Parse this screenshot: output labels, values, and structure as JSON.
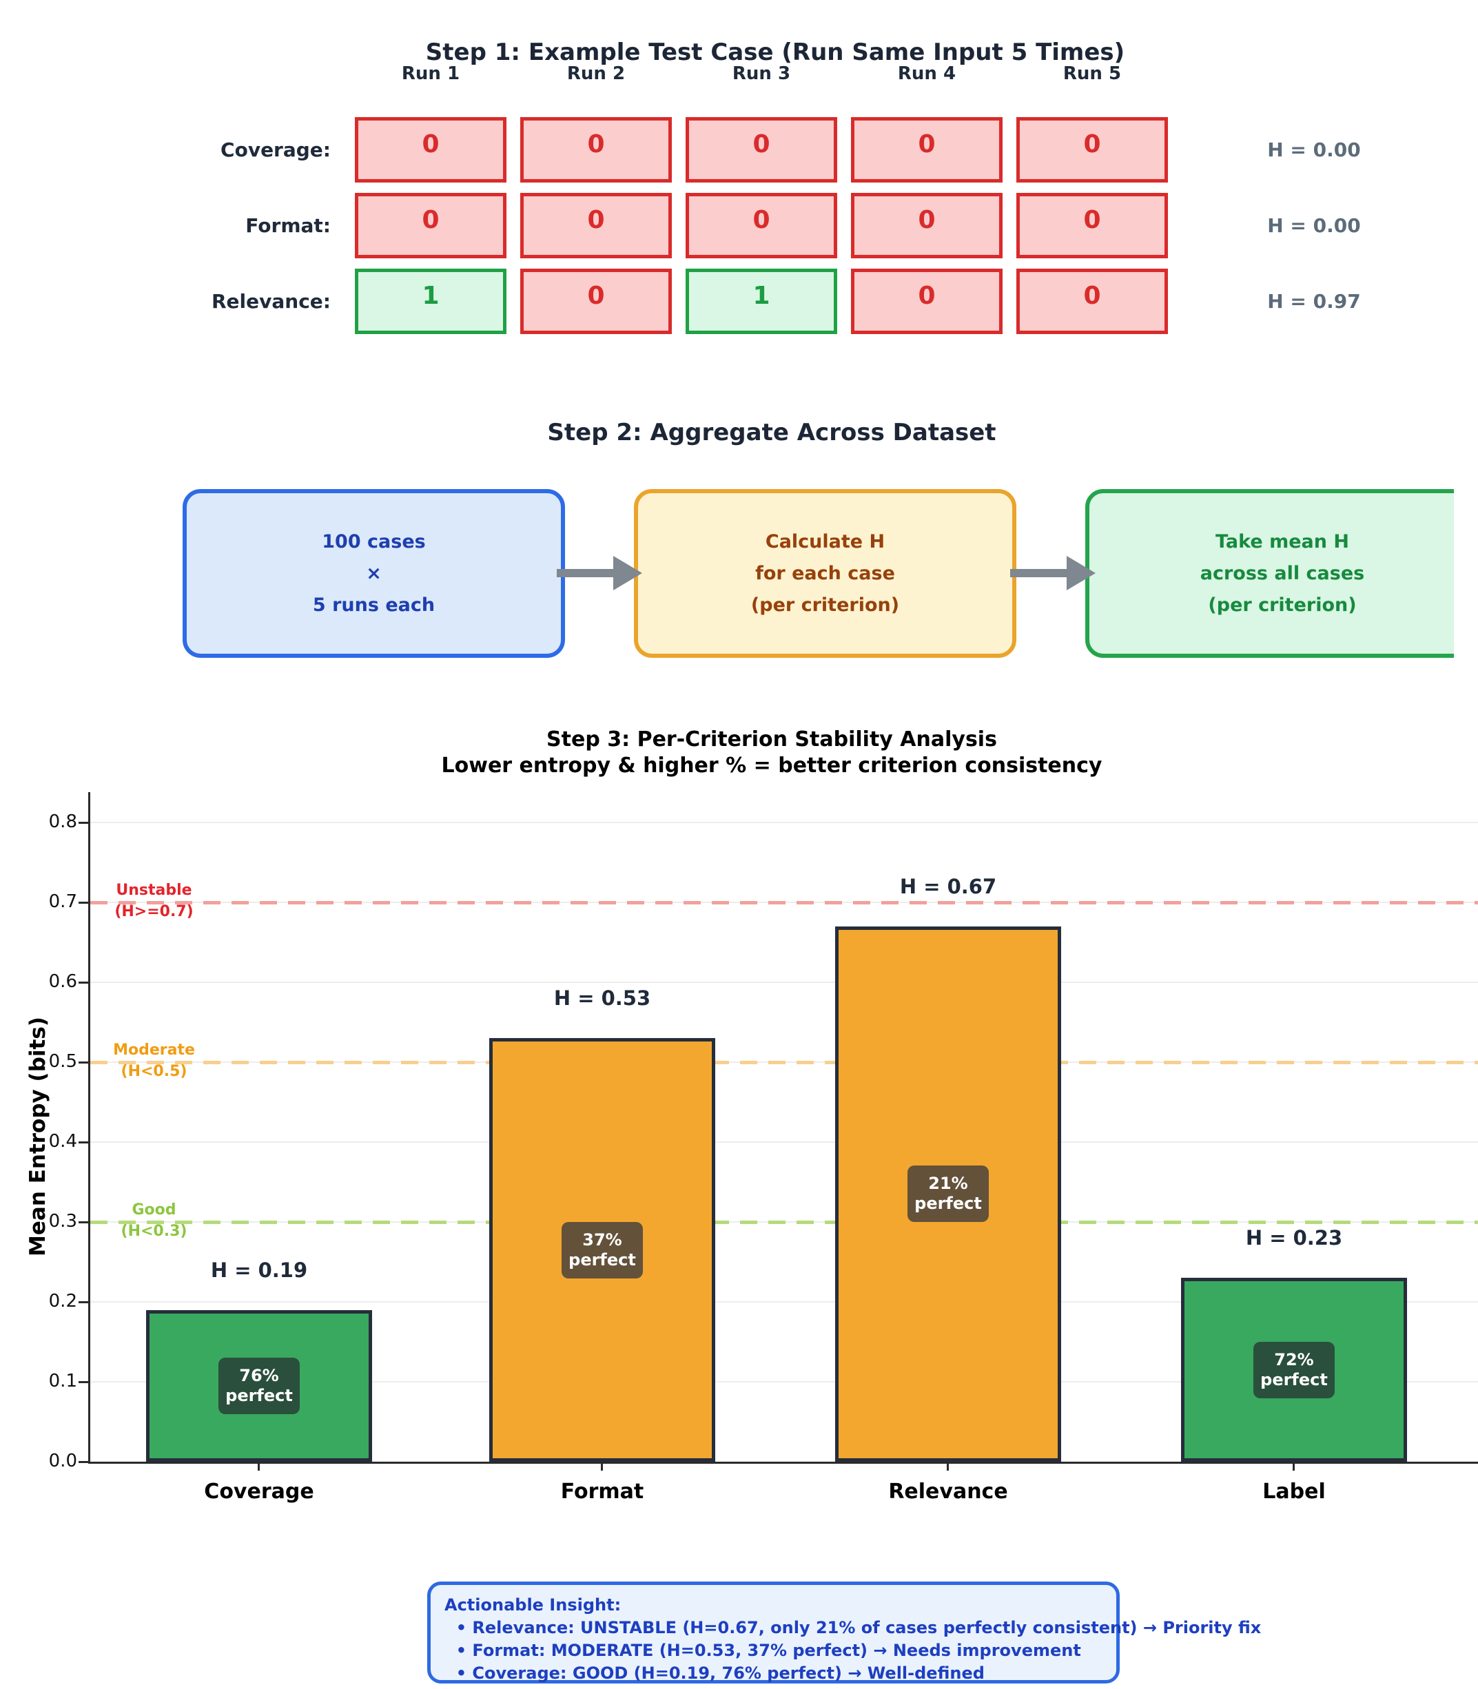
{
  "step1": {
    "title": "Step 1: Example Test Case (Run Same Input 5 Times)",
    "run_headers": [
      "Run 1",
      "Run 2",
      "Run 3",
      "Run 4",
      "Run 5"
    ],
    "rows": [
      {
        "label": "Coverage:",
        "values": [
          "0",
          "0",
          "0",
          "0",
          "0"
        ],
        "entropy": "H = 0.00"
      },
      {
        "label": "Format:",
        "values": [
          "0",
          "0",
          "0",
          "0",
          "0"
        ],
        "entropy": "H = 0.00"
      },
      {
        "label": "Relevance:",
        "values": [
          "1",
          "0",
          "1",
          "0",
          "0"
        ],
        "entropy": "H = 0.97"
      }
    ],
    "cell_colors": {
      "pass": {
        "fill": "#d9f7e4",
        "border": "#21a146",
        "text": "#1c9c43"
      },
      "fail": {
        "fill": "#fbcdcd",
        "border": "#d92b2b",
        "text": "#d92b2b"
      }
    },
    "entropy_color": "#5c6b7a"
  },
  "step2": {
    "title": "Step 2: Aggregate Across Dataset",
    "boxes": [
      {
        "lines": [
          "100 cases",
          "×",
          "5 runs each"
        ],
        "fill": "#dce9fb",
        "border": "#2e6be6",
        "text": "#1e3fae"
      },
      {
        "lines": [
          "Calculate H",
          "for each case",
          "(per criterion)"
        ],
        "fill": "#fdf3d0",
        "border": "#eaa42c",
        "text": "#97410c"
      },
      {
        "lines": [
          "Take mean H",
          "across all cases",
          "(per criterion)"
        ],
        "fill": "#daf6e4",
        "border": "#25a44c",
        "text": "#178a3e"
      }
    ],
    "arrow_color": "#7f8790"
  },
  "chart_data": {
    "type": "bar",
    "title": "Step 3: Per-Criterion Stability Analysis",
    "subtitle": "Lower entropy & higher % = better criterion consistency",
    "categories": [
      "Coverage",
      "Format",
      "Relevance",
      "Label"
    ],
    "values": [
      0.19,
      0.53,
      0.67,
      0.23
    ],
    "bar_value_labels": [
      "H = 0.19",
      "H = 0.53",
      "H = 0.67",
      "H = 0.23"
    ],
    "perfect_percent": [
      76,
      37,
      21,
      72
    ],
    "badge_word": "perfect",
    "bar_colors": [
      "#38a95e",
      "#f3a72f",
      "#f3a72f",
      "#38a95e"
    ],
    "badge_colors": [
      "#2a4f3c",
      "#63513a",
      "#63513a",
      "#2a4f3c"
    ],
    "bar_edge_color": "#262d3b",
    "ylabel": "Mean Entropy (bits)",
    "ylim": [
      0,
      0.84
    ],
    "ytick_labels": [
      "0.0",
      "0.1",
      "0.2",
      "0.3",
      "0.4",
      "0.5",
      "0.6",
      "0.7",
      "0.8"
    ],
    "ytick_values": [
      0.0,
      0.1,
      0.2,
      0.3,
      0.4,
      0.5,
      0.6,
      0.7,
      0.8
    ],
    "grid": true,
    "legend_position": "none",
    "thresholds": [
      {
        "name": "Unstable",
        "cond": "(H>=0.7)",
        "value": 0.7,
        "line_color": "#f2a19c",
        "text_color": "#e3242b"
      },
      {
        "name": "Moderate",
        "cond": "(H<0.5)",
        "value": 0.5,
        "line_color": "#f8cf8e",
        "text_color": "#f09d12"
      },
      {
        "name": "Good",
        "cond": "(H<0.3)",
        "value": 0.3,
        "line_color": "#b5db7a",
        "text_color": "#8dc63f"
      }
    ]
  },
  "insight": {
    "lines": [
      "Actionable Insight:",
      "  • Relevance: UNSTABLE (H=0.67, only 21% of cases perfectly consistent) → Priority fix",
      "  • Format: MODERATE (H=0.53, 37% perfect) → Needs improvement",
      "  • Coverage: GOOD (H=0.19, 76% perfect) → Well-defined"
    ],
    "fill": "#eaf2fd",
    "border": "#2e6ae2",
    "text": "#1d3fc0"
  }
}
